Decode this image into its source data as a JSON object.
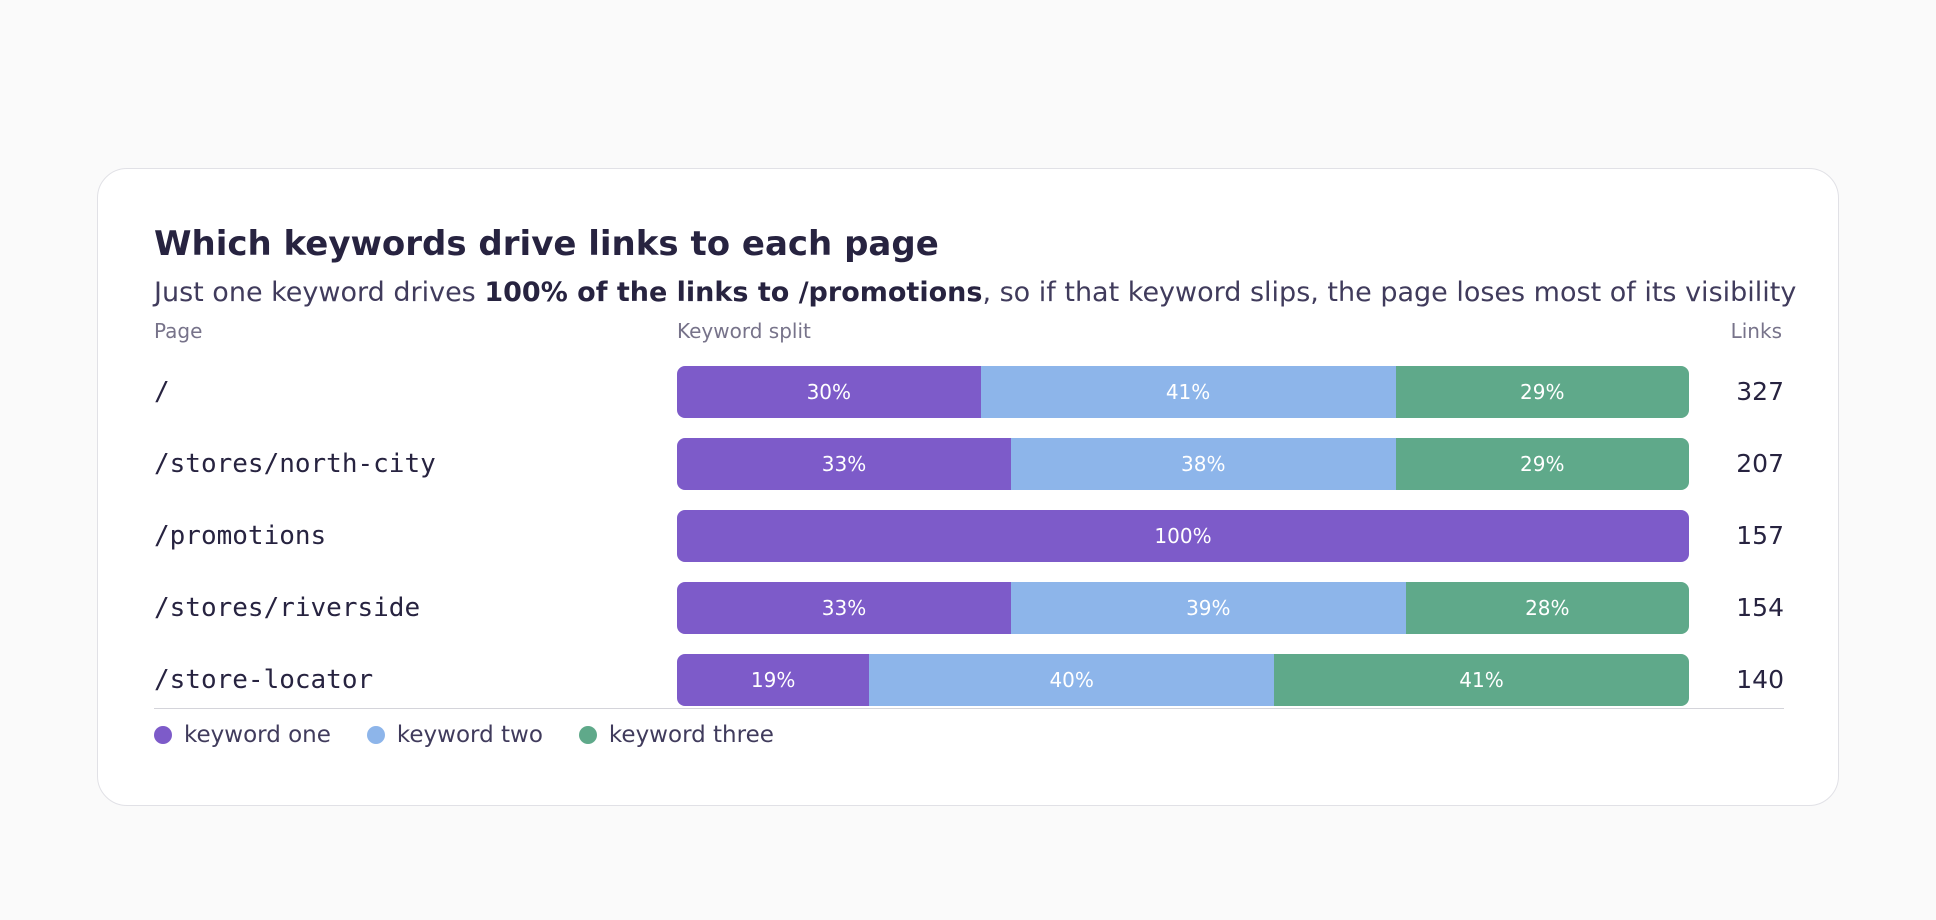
{
  "card": {
    "title": "Which keywords drive links to each page",
    "subtitle_pre": "Just one keyword drives ",
    "subtitle_bold": "100% of the links to /promotions",
    "subtitle_post": ", so if that keyword slips, the page loses most of its visibility"
  },
  "columns": {
    "page": "Page",
    "split": "Keyword split",
    "links": "Links"
  },
  "colors": {
    "keyword_one": "#7d5bc9",
    "keyword_two": "#8db5ea",
    "keyword_three": "#5fa98a"
  },
  "chart_data": {
    "type": "bar",
    "stacked": true,
    "orientation": "horizontal",
    "normalized": true,
    "categories": [
      "/",
      "/stores/north-city",
      "/promotions",
      "/stores/riverside",
      "/store-locator"
    ],
    "series": [
      {
        "name": "keyword one",
        "values": [
          30,
          33,
          100,
          33,
          19
        ]
      },
      {
        "name": "keyword two",
        "values": [
          41,
          38,
          0,
          39,
          40
        ]
      },
      {
        "name": "keyword three",
        "values": [
          29,
          29,
          0,
          28,
          41
        ]
      }
    ],
    "links": [
      327,
      207,
      157,
      154,
      140
    ],
    "title": "Which keywords drive links to each page",
    "legend": "bottom-left",
    "grid": false
  }
}
